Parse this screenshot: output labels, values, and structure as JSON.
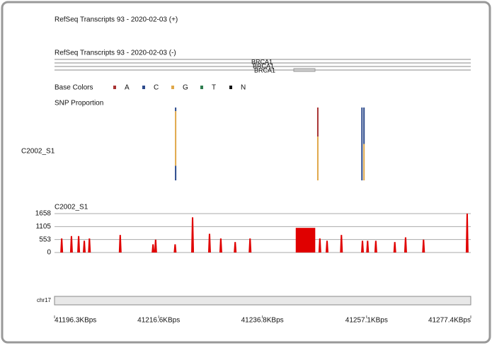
{
  "tracks": {
    "refseq_plus": "RefSeq Transcripts 93 - 2020-02-03 (+)",
    "refseq_minus": "RefSeq Transcripts 93 - 2020-02-03 (-)",
    "gene_labels": [
      "BRCA1",
      "BRCA1",
      "BRCA1"
    ]
  },
  "base_colors": {
    "title": "Base Colors",
    "bases": [
      {
        "name": "A",
        "color": "#a83232"
      },
      {
        "name": "C",
        "color": "#2c4a8c"
      },
      {
        "name": "G",
        "color": "#e0a84a"
      },
      {
        "name": "T",
        "color": "#2e7d4f"
      },
      {
        "name": "N",
        "color": "#111111"
      }
    ]
  },
  "snp": {
    "title": "SNP Proportion",
    "sample": "C2002_S1",
    "sites": [
      {
        "pos": 41219.9,
        "segments": [
          {
            "base": "C",
            "proportion": 0.05
          },
          {
            "base": "G",
            "proportion": 0.75
          },
          {
            "base": "C",
            "proportion": 0.2
          }
        ]
      },
      {
        "pos": 41247.6,
        "segments": [
          {
            "base": "A",
            "proportion": 0.4
          },
          {
            "base": "G",
            "proportion": 0.6
          }
        ]
      },
      {
        "pos": 41256.2,
        "segments": [
          {
            "base": "C",
            "proportion": 1
          }
        ]
      },
      {
        "pos": 41256.6,
        "segments": [
          {
            "base": "C",
            "proportion": 0.5
          },
          {
            "base": "G",
            "proportion": 0.5
          }
        ]
      }
    ]
  },
  "chart_data": {
    "type": "coverage",
    "title": "C2002_S1",
    "color": "#e00000",
    "ylim": [
      0,
      1658
    ],
    "yticks": [
      0,
      553,
      1105,
      1658
    ],
    "xlim": [
      41196.3,
      41277.4
    ],
    "xticks": [
      {
        "value": 41196.3,
        "label": "41196.3KBps"
      },
      {
        "value": 41216.6,
        "label": "41216.6KBps"
      },
      {
        "value": 41236.8,
        "label": "41236.8KBps"
      },
      {
        "value": 41257.1,
        "label": "41257.1KBps"
      },
      {
        "value": 41277.4,
        "label": "41277.4KBps"
      }
    ],
    "x": [
      41197.7,
      41199.6,
      41201.0,
      41202.1,
      41203.1,
      41209.1,
      41215.5,
      41216.0,
      41219.8,
      41223.2,
      41226.5,
      41228.7,
      41231.5,
      41234.4,
      41248.0,
      41249.4,
      41252.2,
      41256.3,
      41257.3,
      41258.9,
      41262.6,
      41264.7,
      41268.2,
      41276.7
    ],
    "values": [
      600,
      700,
      700,
      500,
      600,
      750,
      350,
      550,
      350,
      1500,
      800,
      600,
      450,
      600,
      600,
      500,
      750,
      500,
      500,
      500,
      450,
      650,
      550,
      1658
    ],
    "block": {
      "start": 41243.3,
      "end": 41247.1,
      "value": 1050
    },
    "chromosome": "chr17"
  }
}
